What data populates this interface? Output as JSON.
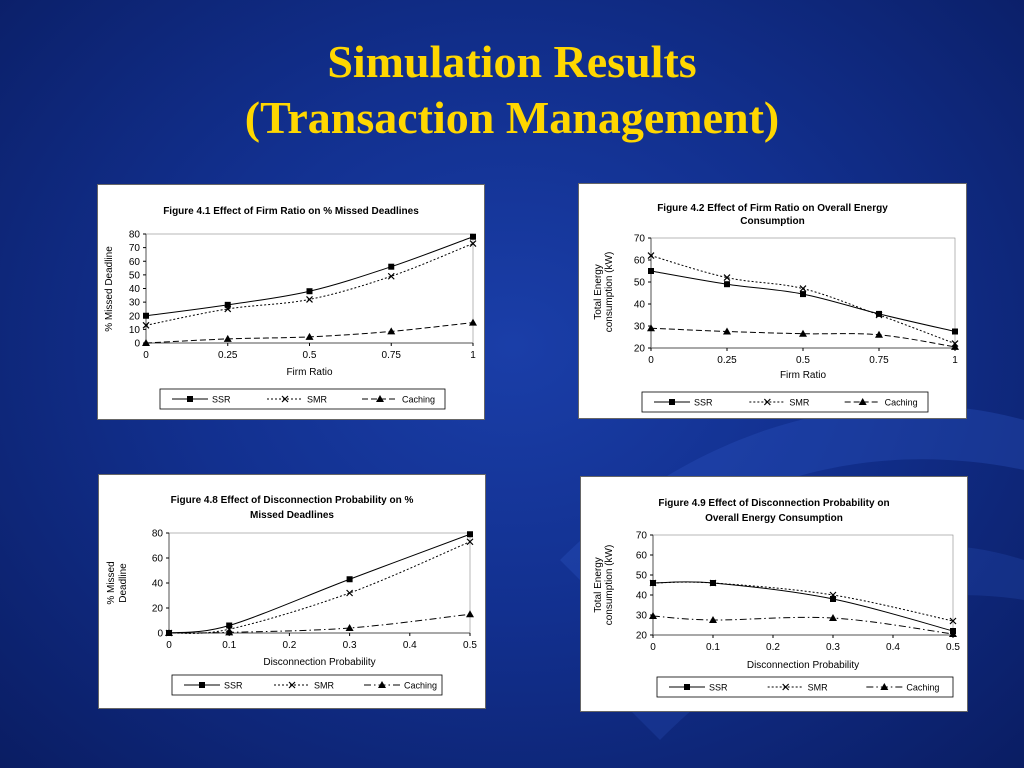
{
  "slide": {
    "title_line1": "Simulation Results",
    "title_line2": "(Transaction Management)"
  },
  "colors": {
    "background": "#12308f",
    "title": "#ffd700",
    "series": "#000000"
  },
  "chart_data": [
    {
      "id": "c1",
      "type": "line",
      "title_lines": [
        "Figure 4.1  Effect of Firm Ratio on % Missed Deadlines"
      ],
      "xlabel": "Firm Ratio",
      "ylabel_lines": [
        "% Missed Deadline"
      ],
      "x": [
        0,
        0.25,
        0.5,
        0.75,
        1
      ],
      "x_ticks": [
        "0",
        "0.25",
        "0.5",
        "0.75",
        "1"
      ],
      "y_ticks": [
        "0",
        "10",
        "20",
        "30",
        "40",
        "50",
        "60",
        "70",
        "80"
      ],
      "xlim": [
        0,
        1
      ],
      "ylim": [
        0,
        80
      ],
      "legend_position": "bottom",
      "series": [
        {
          "name": "SSR",
          "marker": "square",
          "dash": "solid",
          "values": [
            20,
            28,
            38,
            56,
            78
          ]
        },
        {
          "name": "SMR",
          "marker": "x",
          "dash": "dotted",
          "values": [
            13,
            25,
            32,
            49,
            73
          ]
        },
        {
          "name": "Caching",
          "marker": "triangle",
          "dash": "dashed",
          "values": [
            0,
            3,
            4.5,
            8.5,
            15
          ]
        }
      ]
    },
    {
      "id": "c2",
      "type": "line",
      "title_lines": [
        "Figure 4.2  Effect of Firm Ratio on Overall Energy",
        "Consumption"
      ],
      "xlabel": "Firm Ratio",
      "ylabel_lines": [
        "Total Energy",
        "consumption (kW)"
      ],
      "x": [
        0,
        0.25,
        0.5,
        0.75,
        1
      ],
      "x_ticks": [
        "0",
        "0.25",
        "0.5",
        "0.75",
        "1"
      ],
      "y_ticks": [
        "20",
        "30",
        "40",
        "50",
        "60",
        "70"
      ],
      "xlim": [
        0,
        1
      ],
      "ylim": [
        20,
        70
      ],
      "legend_position": "bottom",
      "series": [
        {
          "name": "SSR",
          "marker": "square",
          "dash": "solid",
          "values": [
            55,
            49,
            44.5,
            35.5,
            27.5
          ]
        },
        {
          "name": "SMR",
          "marker": "x",
          "dash": "dotted",
          "values": [
            62,
            52,
            47,
            35,
            22
          ]
        },
        {
          "name": "Caching",
          "marker": "triangle",
          "dash": "dashed",
          "values": [
            29,
            27.5,
            26.5,
            26,
            20.5
          ]
        }
      ]
    },
    {
      "id": "c3",
      "type": "line",
      "title_lines": [
        "Figure 4.8  Effect of Disconnection Probability on %",
        "Missed Deadlines"
      ],
      "xlabel": "Disconnection Probability",
      "ylabel_lines": [
        "% Missed",
        "Deadline"
      ],
      "x": [
        0,
        0.1,
        0.3,
        0.5
      ],
      "x_ticks": [
        "0",
        "0.1",
        "0.2",
        "0.3",
        "0.4",
        "0.5"
      ],
      "x_tick_values": [
        0,
        0.1,
        0.2,
        0.3,
        0.4,
        0.5
      ],
      "y_ticks": [
        "0",
        "20",
        "40",
        "60",
        "80"
      ],
      "xlim": [
        0,
        0.5
      ],
      "ylim": [
        0,
        80
      ],
      "legend_position": "bottom",
      "series": [
        {
          "name": "SSR",
          "marker": "square",
          "dash": "solid",
          "values": [
            0,
            6,
            43,
            79
          ]
        },
        {
          "name": "SMR",
          "marker": "x",
          "dash": "dotted",
          "values": [
            0,
            3,
            32,
            73
          ]
        },
        {
          "name": "Caching",
          "marker": "triangle",
          "dash": "dashdot",
          "values": [
            0,
            0.5,
            4,
            15
          ]
        }
      ]
    },
    {
      "id": "c4",
      "type": "line",
      "title_lines": [
        "Figure 4.9  Effect of Disconnection Probability on",
        "Overall Energy Consumption"
      ],
      "xlabel": "Disconnection Probability",
      "ylabel_lines": [
        "Total Energy",
        "consumption (kW)"
      ],
      "x": [
        0,
        0.1,
        0.3,
        0.5
      ],
      "x_ticks": [
        "0",
        "0.1",
        "0.2",
        "0.3",
        "0.4",
        "0.5"
      ],
      "x_tick_values": [
        0,
        0.1,
        0.2,
        0.3,
        0.4,
        0.5
      ],
      "y_ticks": [
        "20",
        "30",
        "40",
        "50",
        "60",
        "70"
      ],
      "xlim": [
        0,
        0.5
      ],
      "ylim": [
        20,
        70
      ],
      "legend_position": "bottom",
      "series": [
        {
          "name": "SSR",
          "marker": "square",
          "dash": "solid",
          "values": [
            46,
            46,
            38,
            22
          ]
        },
        {
          "name": "SMR",
          "marker": "x",
          "dash": "dotted",
          "values": [
            46,
            46,
            40,
            27
          ]
        },
        {
          "name": "Caching",
          "marker": "triangle",
          "dash": "dashdot",
          "values": [
            29.5,
            27.5,
            28.5,
            20.5
          ]
        }
      ]
    }
  ]
}
